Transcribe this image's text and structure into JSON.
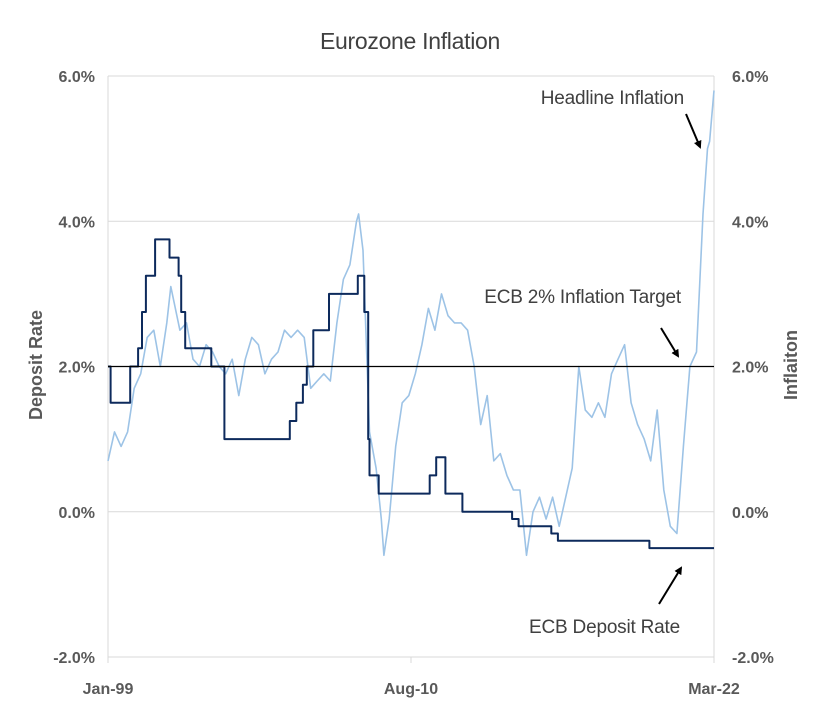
{
  "chart_data": {
    "type": "line",
    "title": "Eurozone Inflation",
    "x_tick_labels": [
      "Jan-99",
      "Aug-10",
      "Mar-22"
    ],
    "x_range": [
      1999.0,
      2022.17
    ],
    "y_left": {
      "label": "Deposit  Rate",
      "range": [
        -2.0,
        6.0
      ],
      "tick_labels": [
        "-2.0%",
        "0.0%",
        "2.0%",
        "4.0%",
        "6.0%"
      ]
    },
    "y_right": {
      "label": "Inflaiton",
      "range": [
        -2.0,
        6.0
      ],
      "tick_labels": [
        "-2.0%",
        "0.0%",
        "2.0%",
        "4.0%",
        "6.0%"
      ]
    },
    "grid": true,
    "annotations": [
      {
        "text": "Headline Inflation",
        "points_to": "Headline Inflation series end"
      },
      {
        "text": "ECB 2% Inflation Target",
        "points_to": "2% target line"
      },
      {
        "text": "ECB Deposit Rate",
        "points_to": "ECB Deposit Rate series end"
      }
    ],
    "reference_lines": [
      {
        "name": "ECB 2% Inflation Target",
        "y": 2.0,
        "color": "#000000"
      }
    ],
    "series": [
      {
        "name": "ECB Deposit Rate",
        "color": "#0d2a5c",
        "step": true,
        "points": [
          [
            1999.0,
            2.0
          ],
          [
            1999.1,
            1.5
          ],
          [
            1999.85,
            2.0
          ],
          [
            2000.15,
            2.25
          ],
          [
            2000.3,
            2.75
          ],
          [
            2000.45,
            3.25
          ],
          [
            2000.8,
            3.75
          ],
          [
            2001.35,
            3.5
          ],
          [
            2001.7,
            3.25
          ],
          [
            2001.8,
            2.75
          ],
          [
            2001.95,
            2.25
          ],
          [
            2002.95,
            2.0
          ],
          [
            2003.45,
            1.0
          ],
          [
            2005.95,
            1.25
          ],
          [
            2006.2,
            1.5
          ],
          [
            2006.45,
            1.75
          ],
          [
            2006.6,
            2.0
          ],
          [
            2006.85,
            2.5
          ],
          [
            2007.45,
            3.0
          ],
          [
            2008.55,
            3.25
          ],
          [
            2008.8,
            2.75
          ],
          [
            2008.95,
            1.0
          ],
          [
            2009.0,
            0.5
          ],
          [
            2009.35,
            0.25
          ],
          [
            2011.3,
            0.5
          ],
          [
            2011.55,
            0.75
          ],
          [
            2011.9,
            0.25
          ],
          [
            2012.55,
            0.0
          ],
          [
            2014.45,
            -0.1
          ],
          [
            2014.7,
            -0.2
          ],
          [
            2015.95,
            -0.3
          ],
          [
            2016.2,
            -0.4
          ],
          [
            2019.7,
            -0.5
          ],
          [
            2022.17,
            -0.5
          ]
        ]
      },
      {
        "name": "Headline Inflation",
        "color": "#9dc3e6",
        "step": false,
        "points": [
          [
            1999.0,
            0.7
          ],
          [
            1999.25,
            1.1
          ],
          [
            1999.5,
            0.9
          ],
          [
            1999.75,
            1.1
          ],
          [
            2000.0,
            1.7
          ],
          [
            2000.25,
            1.9
          ],
          [
            2000.5,
            2.4
          ],
          [
            2000.75,
            2.5
          ],
          [
            2001.0,
            2.0
          ],
          [
            2001.25,
            2.6
          ],
          [
            2001.4,
            3.1
          ],
          [
            2001.75,
            2.5
          ],
          [
            2002.0,
            2.6
          ],
          [
            2002.25,
            2.1
          ],
          [
            2002.5,
            2.0
          ],
          [
            2002.75,
            2.3
          ],
          [
            2003.0,
            2.2
          ],
          [
            2003.25,
            2.0
          ],
          [
            2003.5,
            1.9
          ],
          [
            2003.75,
            2.1
          ],
          [
            2004.0,
            1.6
          ],
          [
            2004.25,
            2.1
          ],
          [
            2004.5,
            2.4
          ],
          [
            2004.75,
            2.3
          ],
          [
            2005.0,
            1.9
          ],
          [
            2005.25,
            2.1
          ],
          [
            2005.5,
            2.2
          ],
          [
            2005.75,
            2.5
          ],
          [
            2006.0,
            2.4
          ],
          [
            2006.25,
            2.5
          ],
          [
            2006.5,
            2.4
          ],
          [
            2006.75,
            1.7
          ],
          [
            2007.0,
            1.8
          ],
          [
            2007.25,
            1.9
          ],
          [
            2007.5,
            1.8
          ],
          [
            2007.75,
            2.6
          ],
          [
            2008.0,
            3.2
          ],
          [
            2008.25,
            3.4
          ],
          [
            2008.5,
            4.0
          ],
          [
            2008.58,
            4.1
          ],
          [
            2008.75,
            3.6
          ],
          [
            2008.9,
            2.1
          ],
          [
            2009.0,
            1.1
          ],
          [
            2009.25,
            0.6
          ],
          [
            2009.45,
            -0.1
          ],
          [
            2009.55,
            -0.6
          ],
          [
            2009.75,
            -0.1
          ],
          [
            2010.0,
            0.9
          ],
          [
            2010.25,
            1.5
          ],
          [
            2010.5,
            1.6
          ],
          [
            2010.75,
            1.9
          ],
          [
            2011.0,
            2.3
          ],
          [
            2011.25,
            2.8
          ],
          [
            2011.5,
            2.5
          ],
          [
            2011.75,
            3.0
          ],
          [
            2012.0,
            2.7
          ],
          [
            2012.25,
            2.6
          ],
          [
            2012.5,
            2.6
          ],
          [
            2012.75,
            2.5
          ],
          [
            2013.0,
            2.0
          ],
          [
            2013.25,
            1.2
          ],
          [
            2013.5,
            1.6
          ],
          [
            2013.75,
            0.7
          ],
          [
            2014.0,
            0.8
          ],
          [
            2014.25,
            0.5
          ],
          [
            2014.5,
            0.3
          ],
          [
            2014.75,
            0.3
          ],
          [
            2015.0,
            -0.6
          ],
          [
            2015.25,
            0.0
          ],
          [
            2015.5,
            0.2
          ],
          [
            2015.75,
            -0.1
          ],
          [
            2016.0,
            0.2
          ],
          [
            2016.25,
            -0.2
          ],
          [
            2016.5,
            0.2
          ],
          [
            2016.75,
            0.6
          ],
          [
            2017.0,
            2.0
          ],
          [
            2017.25,
            1.4
          ],
          [
            2017.5,
            1.3
          ],
          [
            2017.75,
            1.5
          ],
          [
            2018.0,
            1.3
          ],
          [
            2018.25,
            1.9
          ],
          [
            2018.5,
            2.1
          ],
          [
            2018.75,
            2.3
          ],
          [
            2019.0,
            1.5
          ],
          [
            2019.25,
            1.2
          ],
          [
            2019.5,
            1.0
          ],
          [
            2019.75,
            0.7
          ],
          [
            2020.0,
            1.4
          ],
          [
            2020.25,
            0.3
          ],
          [
            2020.5,
            -0.2
          ],
          [
            2020.75,
            -0.3
          ],
          [
            2021.0,
            0.9
          ],
          [
            2021.25,
            2.0
          ],
          [
            2021.5,
            2.2
          ],
          [
            2021.75,
            4.1
          ],
          [
            2021.92,
            5.0
          ],
          [
            2022.0,
            5.1
          ],
          [
            2022.17,
            5.8
          ]
        ]
      }
    ]
  }
}
